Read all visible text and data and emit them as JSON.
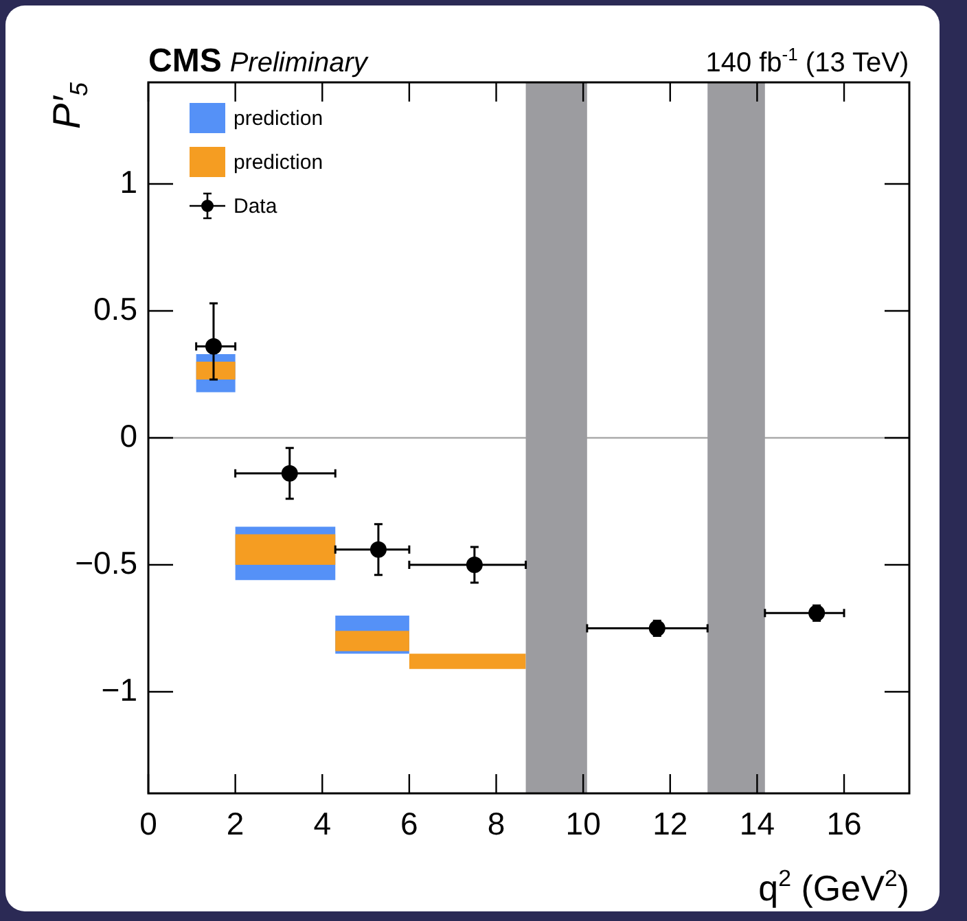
{
  "chart_data": {
    "type": "histogram",
    "title": "CMS",
    "subtitle": "Preliminary",
    "annotations": [
      "140 fb$^{-1}$ (13 TeV)"
    ],
    "xlabel": "q$^{2}$ (GeV$^{2}$)",
    "ylabel": "P′$_{5}$",
    "xlim": [
      0,
      17.5
    ],
    "xticks": [
      0,
      2,
      4,
      6,
      8,
      10,
      12,
      14,
      16
    ],
    "ylim": [
      -1.4,
      1.4
    ],
    "yticks": [
      {
        "value": -1,
        "label": "−1"
      },
      {
        "value": -0.5,
        "label": "−0.5"
      },
      0,
      0.5,
      1
    ],
    "grid": false,
    "legend": "top left",
    "marker": "circle",
    "ref_lines": [
      {
        "axis": "y",
        "value": 0,
        "color": "#aaaaaa"
      }
    ],
    "bands": [
      {
        "axis": "x",
        "from": 8.68,
        "to": 10.09,
        "color": "#9c9ca0"
      },
      {
        "axis": "x",
        "from": 12.86,
        "to": 14.18,
        "color": "#9c9ca0"
      }
    ],
    "series": [
      {
        "name": "prediction",
        "color": "#5591f7",
        "bins": [
          1.1,
          2,
          4.3,
          6
        ],
        "base": [
          0.18,
          -0.56,
          -0.85
        ],
        "values": [
          0.15,
          0.21,
          0.15
        ]
      },
      {
        "name": "prediction",
        "color": "#f59d22",
        "bins": [
          1.1,
          2,
          4.3,
          6,
          8.68
        ],
        "base": [
          0.23,
          -0.5,
          -0.84,
          -0.91
        ],
        "values": [
          0.07,
          0.12,
          0.08,
          0.06
        ]
      },
      {
        "name": "Data",
        "type": "scatter",
        "color": "#000000",
        "x": [
          1.5,
          3.25,
          5.29,
          7.5,
          11.7,
          15.37
        ],
        "values": [
          0.36,
          -0.14,
          -0.44,
          -0.5,
          -0.75,
          -0.69
        ],
        "errors": [
          [
            0.23,
            0.53
          ],
          0.1,
          0.1,
          0.07,
          0.03,
          0.03
        ],
        "xerrors": [
          [
            1.1,
            2
          ],
          [
            2,
            4.3
          ],
          [
            4.3,
            6
          ],
          [
            6,
            8.68
          ],
          [
            10.09,
            12.86
          ],
          [
            14.18,
            16
          ]
        ]
      }
    ]
  }
}
